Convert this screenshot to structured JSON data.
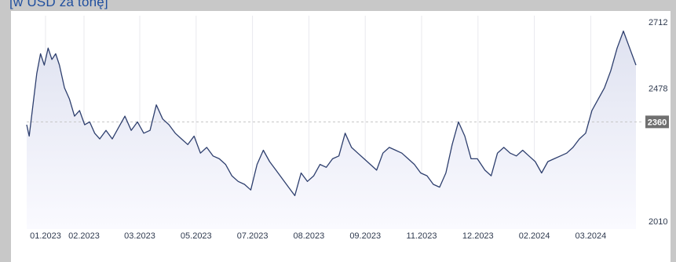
{
  "header": {
    "unit_label": "[w USD za tonę]"
  },
  "colors": {
    "line": "#2e3f6e",
    "area_top": "#dfe2f0",
    "area_bottom": "#fafaff",
    "grid": "#e9e9ee",
    "ref_line": "#c5c5c5",
    "ref_badge": "#707070",
    "background": "#c8c8c8"
  },
  "chart_data": {
    "type": "area",
    "title": "",
    "xlabel": "",
    "ylabel": "",
    "ylim": [
      2010,
      2712
    ],
    "y_ticks": [
      "2712",
      "2478",
      "2010"
    ],
    "reference_value": "2360",
    "x_tick_labels": [
      "01.2023",
      "02.2023",
      "03.2023",
      "05.2023",
      "07.2023",
      "08.2023",
      "09.2023",
      "11.2023",
      "12.2023",
      "02.2024",
      "03.2024"
    ],
    "grid": "vertical",
    "series": [
      {
        "x": [
          "2023-01-02",
          "2023-01-04",
          "2023-01-07",
          "2023-01-10",
          "2023-01-13",
          "2023-01-16",
          "2023-01-19",
          "2023-01-22",
          "2023-01-25",
          "2023-01-28",
          "2023-02-01",
          "2023-02-05",
          "2023-02-09",
          "2023-02-13",
          "2023-02-17",
          "2023-02-21",
          "2023-02-25",
          "2023-03-01",
          "2023-03-06",
          "2023-03-11",
          "2023-03-16",
          "2023-03-21",
          "2023-03-26",
          "2023-03-31",
          "2023-04-05",
          "2023-04-10",
          "2023-04-15",
          "2023-04-20",
          "2023-04-25",
          "2023-04-30",
          "2023-05-05",
          "2023-05-10",
          "2023-05-15",
          "2023-05-20",
          "2023-05-25",
          "2023-05-30",
          "2023-06-04",
          "2023-06-09",
          "2023-06-14",
          "2023-06-19",
          "2023-06-24",
          "2023-06-29",
          "2023-07-04",
          "2023-07-09",
          "2023-07-14",
          "2023-07-19",
          "2023-07-24",
          "2023-07-29",
          "2023-08-03",
          "2023-08-08",
          "2023-08-13",
          "2023-08-18",
          "2023-08-23",
          "2023-08-28",
          "2023-09-02",
          "2023-09-07",
          "2023-09-12",
          "2023-09-17",
          "2023-09-22",
          "2023-09-27",
          "2023-10-02",
          "2023-10-07",
          "2023-10-12",
          "2023-10-17",
          "2023-10-22",
          "2023-10-27",
          "2023-11-01",
          "2023-11-06",
          "2023-11-11",
          "2023-11-16",
          "2023-11-21",
          "2023-11-26",
          "2023-12-01",
          "2023-12-06",
          "2023-12-11",
          "2023-12-16",
          "2023-12-21",
          "2023-12-26",
          "2024-01-01",
          "2024-01-06",
          "2024-01-11",
          "2024-01-16",
          "2024-01-21",
          "2024-01-26",
          "2024-01-31",
          "2024-02-05",
          "2024-02-10",
          "2024-02-15",
          "2024-02-20",
          "2024-02-25",
          "2024-03-01",
          "2024-03-06",
          "2024-03-11",
          "2024-03-16",
          "2024-03-21",
          "2024-03-26",
          "2024-03-31",
          "2024-04-05",
          "2024-04-10",
          "2024-04-15",
          "2024-04-20",
          "2024-04-25",
          "2024-04-30"
        ],
        "values": [
          2350,
          2310,
          2420,
          2530,
          2600,
          2560,
          2620,
          2580,
          2600,
          2560,
          2480,
          2440,
          2380,
          2400,
          2350,
          2360,
          2320,
          2300,
          2330,
          2300,
          2340,
          2380,
          2330,
          2360,
          2320,
          2330,
          2420,
          2370,
          2350,
          2320,
          2300,
          2280,
          2310,
          2250,
          2270,
          2240,
          2230,
          2210,
          2170,
          2150,
          2140,
          2120,
          2210,
          2260,
          2220,
          2190,
          2160,
          2130,
          2100,
          2180,
          2150,
          2170,
          2210,
          2200,
          2230,
          2240,
          2320,
          2270,
          2250,
          2230,
          2210,
          2190,
          2250,
          2270,
          2260,
          2250,
          2230,
          2210,
          2180,
          2170,
          2140,
          2130,
          2180,
          2280,
          2360,
          2310,
          2230,
          2230,
          2190,
          2170,
          2250,
          2270,
          2250,
          2240,
          2260,
          2240,
          2220,
          2180,
          2220,
          2230,
          2240,
          2250,
          2270,
          2300,
          2320,
          2400,
          2440,
          2480,
          2540,
          2620,
          2680,
          2620,
          2560
        ]
      }
    ]
  }
}
